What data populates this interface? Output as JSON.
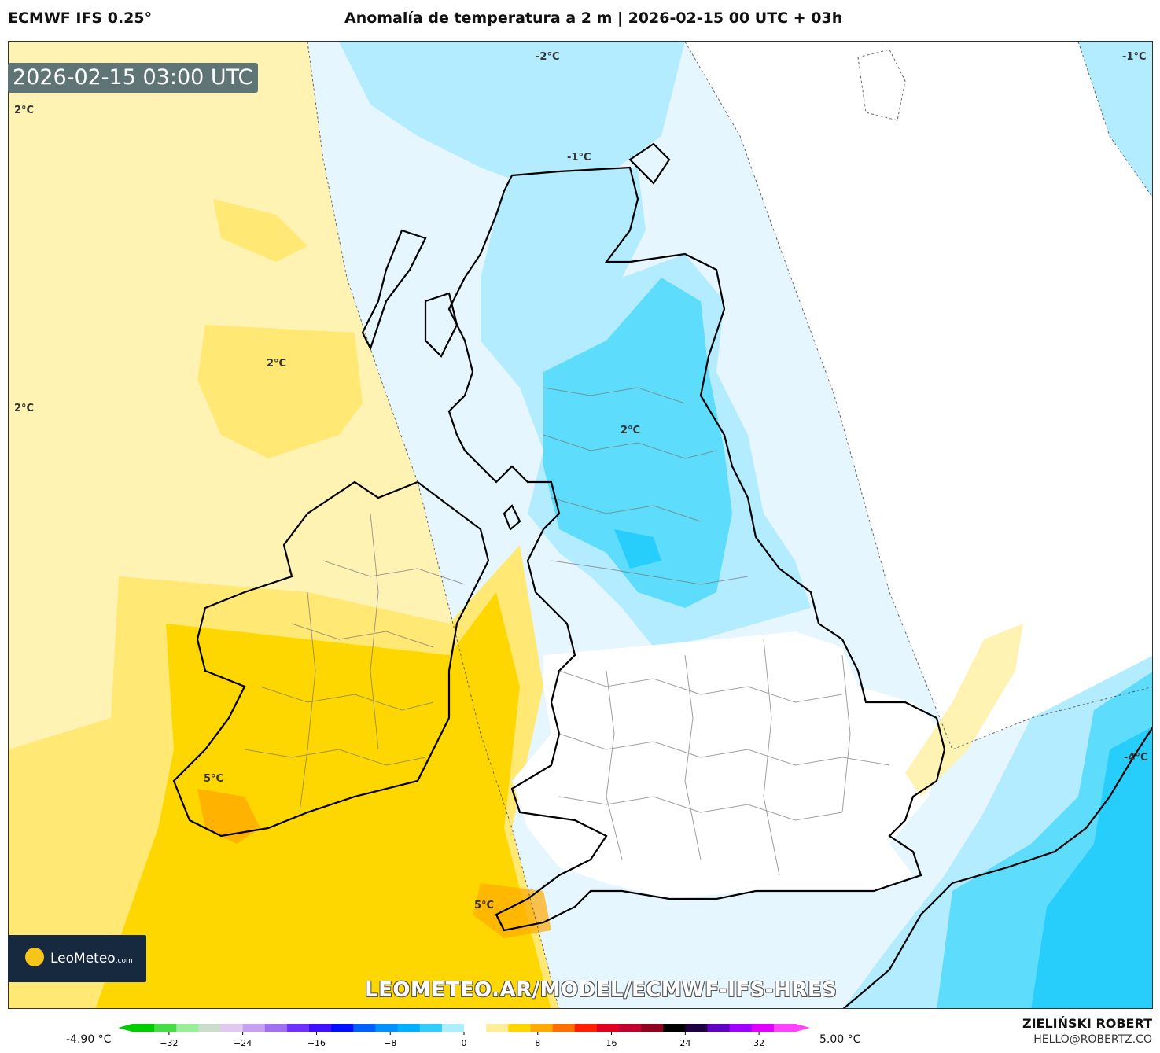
{
  "header": {
    "model": "ECMWF IFS 0.25°",
    "title": "Anomalía de temperatura a 2 m | 2026-02-15 00 UTC + 03h"
  },
  "map": {
    "timestamp": "2026-02-15 03:00 UTC",
    "contour_labels": [
      "2°C",
      "2°C",
      "2°C",
      "-2°C",
      "-1°C",
      "-1°C",
      "2°C",
      "5°C",
      "5°C",
      "-4°C"
    ],
    "watermark": "LEOMETEO.AR/MODEL/ECMWF-IFS-HRES",
    "logo_text": "LeoMeteo",
    "logo_suffix": ".com",
    "colors": {
      "warm_strong": "#ffd700",
      "warm_mid": "#ffe873",
      "warm_light": "#fff3b3",
      "neutral": "#ffffff",
      "cool_light": "#e6f6ff",
      "cool_mid": "#b3ecff",
      "cool_strong": "#5edcfb",
      "cool_deep": "#27cefb"
    }
  },
  "colorbar": {
    "min_label": "-4.90 °C",
    "max_label": "5.00 °C",
    "ticks": [
      "−32",
      "−24",
      "−16",
      "−8",
      "0",
      "8",
      "16",
      "24",
      "32"
    ],
    "tick_values": [
      -32,
      -24,
      -16,
      -8,
      0,
      8,
      16,
      24,
      32
    ],
    "range": [
      -36,
      36
    ],
    "stops": [
      "#00cc00",
      "#44dd44",
      "#99ee99",
      "#ccddcc",
      "#e0c8f0",
      "#c8a0f0",
      "#a070f0",
      "#7030ff",
      "#4010ff",
      "#0010ff",
      "#0060ff",
      "#0090ff",
      "#00b0ff",
      "#33ccff",
      "#aaeeff",
      "#ffffff",
      "#ffee99",
      "#ffd700",
      "#ffaa00",
      "#ff7000",
      "#ff2000",
      "#e00020",
      "#c00030",
      "#900020",
      "#000000",
      "#200040",
      "#6000c0",
      "#a000ff",
      "#e000ff",
      "#ff40ff"
    ]
  },
  "author": {
    "name": "ZIELIŃSKI ROBERT",
    "email": "HELLO@ROBERTZ.CO"
  }
}
